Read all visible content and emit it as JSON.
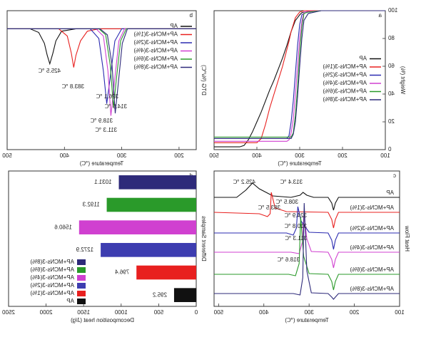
{
  "chart_data": [
    {
      "type": "line",
      "panel_label": "a",
      "x_label": "Temperature (℃)",
      "y_label": "Weight (%)",
      "xlim": [
        100,
        500
      ],
      "xticks": [
        100,
        200,
        300,
        400,
        500
      ],
      "ylim": [
        0,
        100
      ],
      "yticks": [
        0,
        20,
        40,
        60,
        80,
        100
      ],
      "legend": "center left",
      "x": [
        100,
        250,
        280,
        290,
        295,
        300,
        305,
        310,
        315,
        320,
        325,
        330,
        340,
        350,
        360,
        370,
        380,
        390,
        400,
        410,
        420,
        430,
        440,
        500
      ],
      "series": [
        {
          "name": "AP",
          "color": "#111111",
          "values": [
            100,
            100,
            99.5,
            99,
            98.5,
            97,
            95,
            93,
            89,
            85,
            80,
            75,
            66,
            58,
            50,
            43,
            35,
            27,
            20,
            13,
            7,
            3,
            2,
            2
          ]
        },
        {
          "name": "AP+MCNs-3(1%)",
          "color": "#e8201f",
          "values": [
            100,
            100,
            100,
            100,
            99.5,
            99,
            97,
            95,
            90,
            85,
            78,
            72,
            60,
            50,
            40,
            30,
            18,
            8,
            5,
            5,
            5,
            5,
            5,
            5
          ]
        },
        {
          "name": "AP+MCNs-3(2%)",
          "color": "#2a2ab0",
          "values": [
            100,
            100,
            99,
            98,
            97,
            90,
            75,
            55,
            35,
            20,
            10,
            8,
            8,
            8,
            8,
            8,
            8,
            8,
            8,
            8,
            8,
            8,
            8,
            8
          ]
        },
        {
          "name": "AP+MCNs-3(4%)",
          "color": "#d040d0",
          "values": [
            100,
            100,
            99.5,
            99,
            92,
            80,
            60,
            40,
            22,
            12,
            7,
            6,
            6,
            6,
            6,
            6,
            6,
            6,
            6,
            6,
            6,
            6,
            6,
            6
          ]
        },
        {
          "name": "AP+MCNs-3(6%)",
          "color": "#2a9a2a",
          "values": [
            100,
            100,
            99,
            98,
            88,
            70,
            45,
            25,
            12,
            9,
            9,
            9,
            9,
            9,
            9,
            9,
            9,
            9,
            9,
            9,
            9,
            9,
            9,
            9
          ]
        },
        {
          "name": "AP+MCNs-3(8%)",
          "color": "#2e2a7a",
          "values": [
            100,
            100,
            98,
            93,
            80,
            60,
            38,
            20,
            11,
            8,
            8,
            8,
            8,
            8,
            8,
            8,
            8,
            8,
            8,
            8,
            8,
            8,
            8,
            8
          ]
        }
      ]
    },
    {
      "type": "line",
      "panel_label": "b",
      "x_label": "Temperature (℃)",
      "y_label": "DTG (%/℃)",
      "xlim": [
        170,
        500
      ],
      "xticks": [
        200,
        300,
        400,
        500
      ],
      "ylim": [
        -1,
        0.15
      ],
      "legend": "upper left",
      "series": [
        {
          "name": "AP",
          "color": "#111111",
          "x": [
            170,
            380,
            405,
            415,
            420,
            425.5,
            430,
            435,
            445,
            460,
            500
          ],
          "values": [
            0,
            0,
            -0.02,
            -0.1,
            -0.2,
            -0.29,
            -0.22,
            -0.12,
            -0.03,
            0,
            0
          ]
        },
        {
          "name": "AP+MCNs-3(1%)",
          "color": "#e8201f",
          "x": [
            170,
            340,
            360,
            372,
            380,
            383.8,
            388,
            395,
            410,
            500
          ],
          "values": [
            0,
            0,
            -0.02,
            -0.1,
            -0.22,
            -0.32,
            -0.2,
            -0.06,
            0,
            0
          ]
        },
        {
          "name": "AP+MCNs-3(2%)",
          "color": "#2a2ab0",
          "x": [
            170,
            300,
            312,
            320,
            326.1,
            332,
            340,
            355,
            500
          ],
          "values": [
            0,
            0,
            -0.1,
            -0.4,
            -0.62,
            -0.35,
            -0.08,
            0,
            0
          ]
        },
        {
          "name": "AP+MCNs-3(4%)",
          "color": "#d040d0",
          "x": [
            170,
            295,
            305,
            313,
            318.9,
            324,
            332,
            345,
            500
          ],
          "values": [
            0,
            0,
            -0.1,
            -0.45,
            -0.72,
            -0.35,
            -0.06,
            0,
            0
          ]
        },
        {
          "name": "AP+MCNs-3(6%)",
          "color": "#2a9a2a",
          "x": [
            170,
            292,
            302,
            309,
            314.5,
            320,
            328,
            340,
            500
          ],
          "values": [
            0,
            0,
            -0.1,
            -0.4,
            -0.65,
            -0.3,
            -0.05,
            0,
            0
          ]
        },
        {
          "name": "AP+MCNs-3(8%)",
          "color": "#2e2a7a",
          "x": [
            170,
            290,
            299,
            306,
            311.3,
            317,
            325,
            338,
            500
          ],
          "values": [
            0,
            0,
            -0.12,
            -0.45,
            -0.7,
            -0.3,
            -0.05,
            0,
            0
          ]
        }
      ],
      "annotations": [
        "425.5 ℃",
        "383.8 ℃",
        "326.1 ℃",
        "314.5 ℃",
        "318.9 ℃",
        "311.3 ℃"
      ]
    },
    {
      "type": "line",
      "panel_label": "c",
      "x_label": "Temperature (℃)",
      "y_label": "Heat Flow",
      "xlim": [
        100,
        510
      ],
      "xticks": [
        100,
        200,
        300,
        400,
        500
      ],
      "ylim": [
        0,
        19
      ],
      "legend": "inline",
      "series": [
        {
          "name": "AP",
          "color": "#111111",
          "x": [
            100,
            235,
            242,
            246,
            250,
            258,
            290,
            305,
            313.4,
            320,
            340,
            380,
            410,
            425.2,
            440,
            460,
            510
          ],
          "values": [
            15.3,
            15.3,
            14.5,
            13.5,
            14.5,
            15.3,
            15.3,
            15.6,
            16.0,
            15.6,
            15.3,
            15.5,
            16.5,
            17.3,
            16.3,
            15.3,
            15.3
          ]
        },
        {
          "name": "AP+MCNs-3(1%)",
          "color": "#e8201f",
          "x": [
            100,
            235,
            242,
            246,
            250,
            258,
            350,
            375,
            383.5,
            386,
            392,
            410,
            510
          ],
          "values": [
            13.2,
            13.2,
            12.2,
            11.0,
            12.2,
            13.2,
            13.3,
            13.8,
            16.0,
            13.0,
            12.6,
            13.0,
            13.2
          ]
        },
        {
          "name": "AP+MCNs-3(2%)",
          "color": "#2a2ab0",
          "x": [
            100,
            235,
            242,
            246,
            250,
            258,
            300,
            318,
            324.9,
            328,
            335,
            350,
            510
          ],
          "values": [
            10.3,
            10.3,
            9.3,
            8.0,
            9.3,
            10.3,
            10.4,
            12,
            14.0,
            11,
            10,
            10.3,
            10.3
          ]
        },
        {
          "name": "AP+MCNs-3(4%)",
          "color": "#d040d0",
          "x": [
            100,
            235,
            242,
            246,
            250,
            258,
            295,
            305,
            311.3,
            315,
            322,
            340,
            510
          ],
          "values": [
            7.6,
            7.6,
            6.6,
            5.4,
            6.6,
            7.6,
            7.7,
            9.5,
            13.0,
            9,
            7.4,
            7.6,
            7.6
          ]
        },
        {
          "name": "AP+MCNs-3(6%)",
          "color": "#2a9a2a",
          "x": [
            100,
            235,
            242,
            246,
            250,
            258,
            300,
            312,
            318.6,
            322,
            330,
            345,
            510
          ],
          "values": [
            4.5,
            4.5,
            3.5,
            2.3,
            3.5,
            4.5,
            4.6,
            7,
            12.5,
            6,
            4.3,
            4.5,
            4.5
          ]
        },
        {
          "name": "AP+MCNs-3(8%)",
          "color": "#2e2a7a",
          "x": [
            100,
            235,
            242,
            246,
            250,
            258,
            295,
            305,
            310.8,
            314,
            320,
            335,
            510
          ],
          "values": [
            1.8,
            1.8,
            1.3,
            1.0,
            1.3,
            1.8,
            1.9,
            5,
            14.5,
            4,
            1.6,
            1.8,
            1.8
          ]
        }
      ],
      "annotations": [
        "425.2 ℃",
        "313.4 ℃",
        "383.5 ℃",
        "308.5 ℃",
        "324.9 ℃",
        "310.8 ℃",
        "311.3 ℃",
        "318.6 ℃"
      ]
    },
    {
      "type": "bar",
      "horizontal": true,
      "panel_label": "d",
      "x_label": "Decomposition heat (J/g)",
      "y_label": "Different Samples",
      "xlim": [
        0,
        2500
      ],
      "xticks": [
        0,
        500,
        1000,
        1500,
        2000,
        2500
      ],
      "legend": "lower right",
      "categories": [
        "AP",
        "AP+MCNs-3(1%)",
        "AP+MCNs-3(2%)",
        "AP+MCNs-3(4%)",
        "AP+MCNs-3(6%)",
        "AP+MCNs-3(8%)"
      ],
      "values": [
        295.2,
        796.4,
        1272.9,
        1560.6,
        1192.3,
        1031.1
      ],
      "colors": [
        "#111111",
        "#e8201f",
        "#3d3db0",
        "#d040d0",
        "#2a9a2a",
        "#2e2a7a"
      ]
    }
  ]
}
